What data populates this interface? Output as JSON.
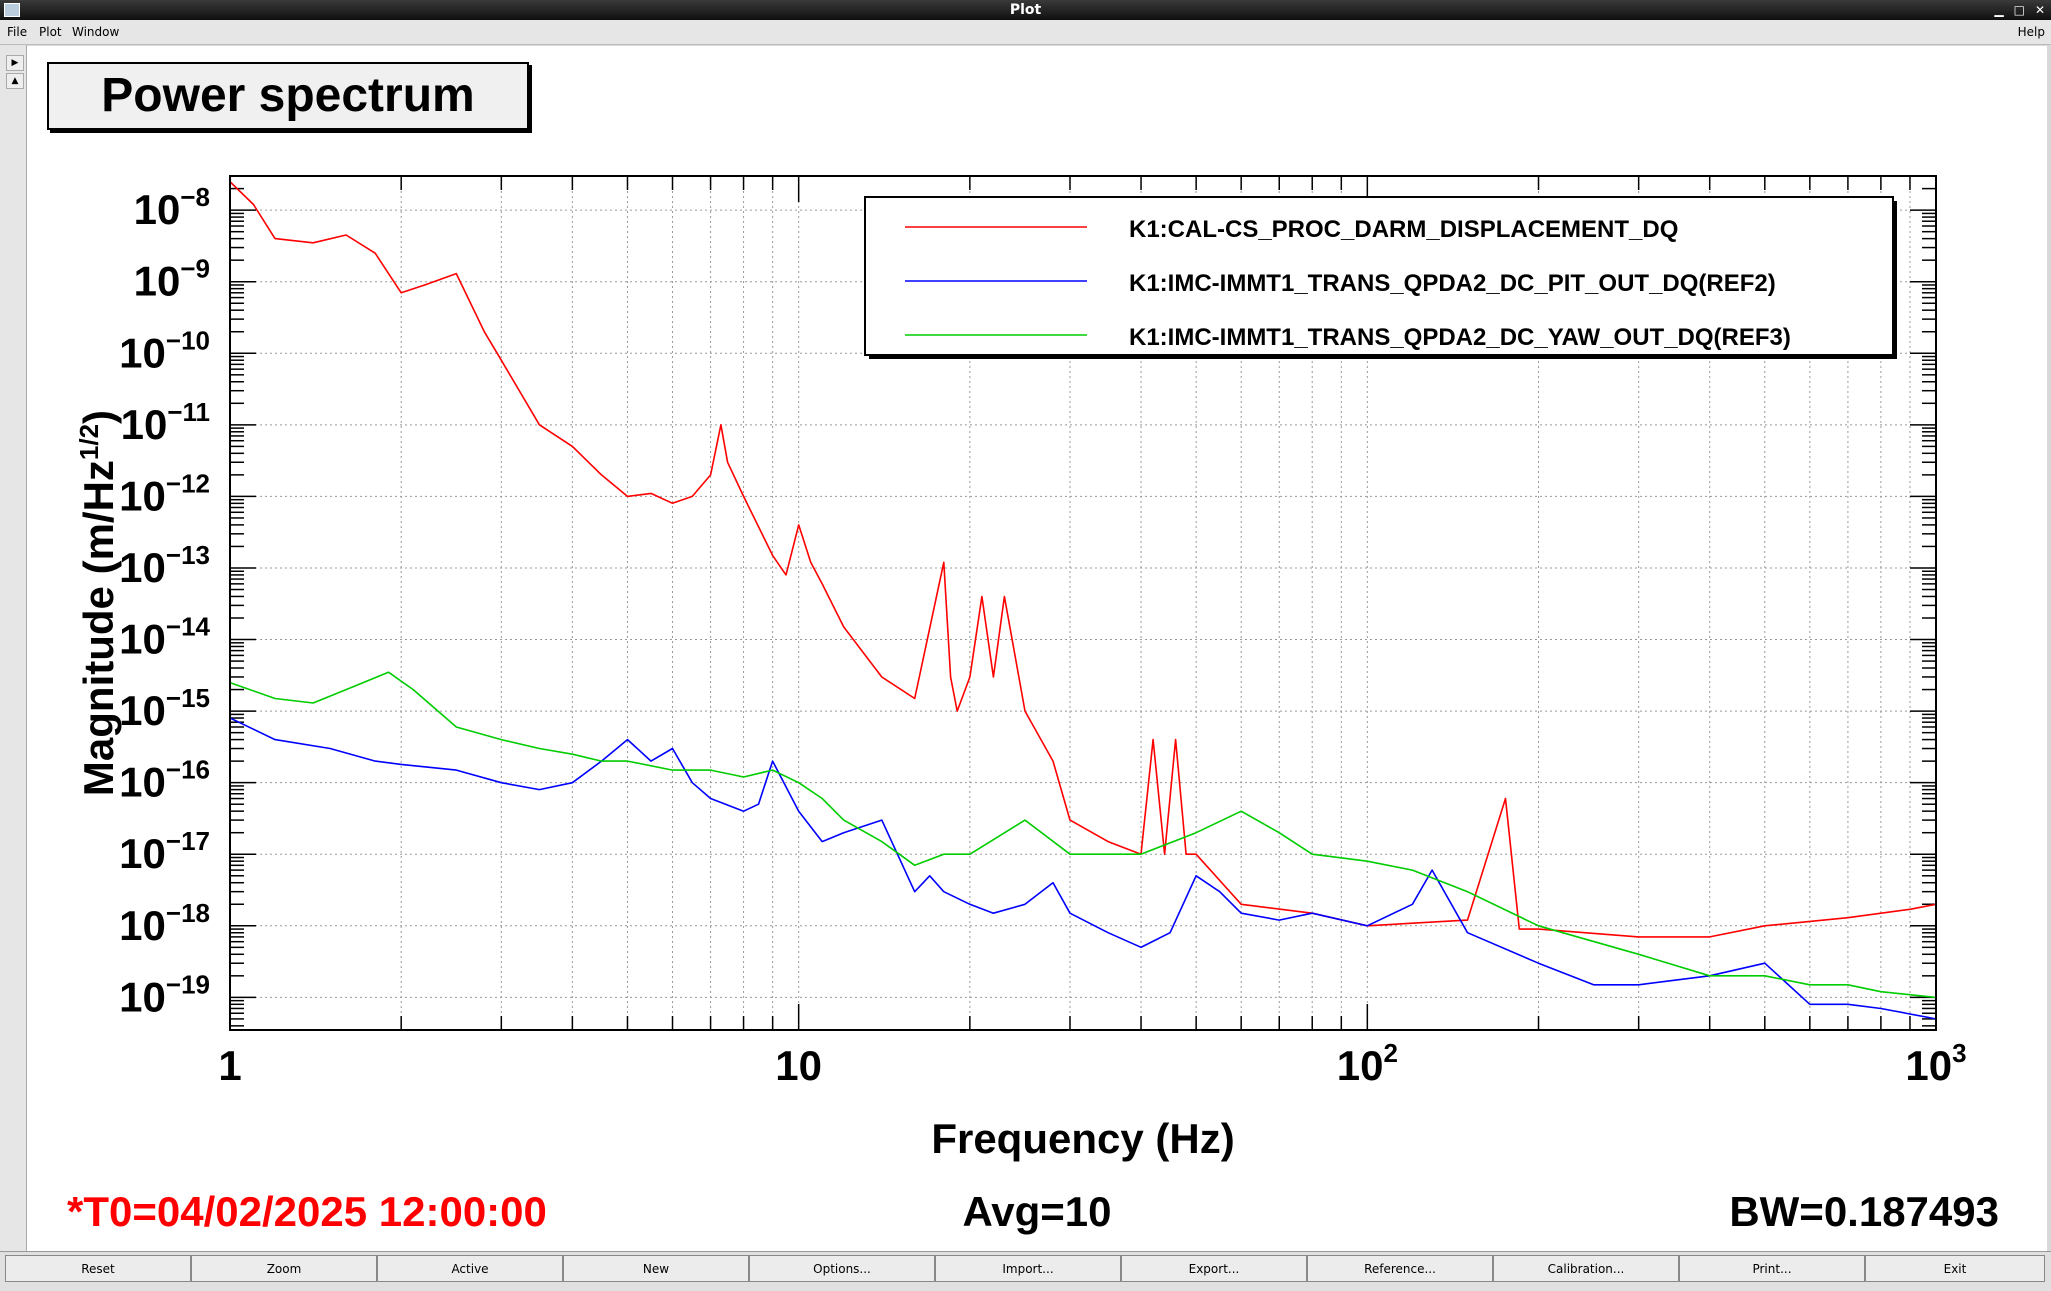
{
  "window": {
    "title": "Plot",
    "help_label": "Help"
  },
  "menu": {
    "items": [
      "File",
      "Plot",
      "Window"
    ]
  },
  "plot_title": "Power spectrum",
  "status": {
    "t0": "*T0=04/02/2025 12:00:00",
    "avg": "Avg=10",
    "bw": "BW=0.187493",
    "t0_color": "#ff0000"
  },
  "buttons": [
    "Reset",
    "Zoom",
    "Active",
    "New",
    "Options...",
    "Import...",
    "Export...",
    "Reference...",
    "Calibration...",
    "Print...",
    "Exit"
  ],
  "chart_data": {
    "type": "line",
    "xlabel": "Frequency (Hz)",
    "ylabel": "Magnitude (m/Hz^(1/2))",
    "xscale": "log",
    "yscale": "log",
    "xlim": [
      1,
      1000
    ],
    "ylim": [
      3.5e-20,
      3e-08
    ],
    "grid": true,
    "legend_placement": "top-right",
    "x_ticks": [
      {
        "value": 1,
        "mantissa": "1",
        "exp": ""
      },
      {
        "value": 10,
        "mantissa": "10",
        "exp": ""
      },
      {
        "value": 100,
        "mantissa": "10",
        "exp": "2"
      },
      {
        "value": 1000,
        "mantissa": "10",
        "exp": "3"
      }
    ],
    "y_ticks": [
      {
        "value": 1e-08,
        "mantissa": "10",
        "exp": "−8"
      },
      {
        "value": 1e-09,
        "mantissa": "10",
        "exp": "−9"
      },
      {
        "value": 1e-10,
        "mantissa": "10",
        "exp": "−10"
      },
      {
        "value": 1e-11,
        "mantissa": "10",
        "exp": "−11"
      },
      {
        "value": 1e-12,
        "mantissa": "10",
        "exp": "−12"
      },
      {
        "value": 1e-13,
        "mantissa": "10",
        "exp": "−13"
      },
      {
        "value": 1e-14,
        "mantissa": "10",
        "exp": "−14"
      },
      {
        "value": 1e-15,
        "mantissa": "10",
        "exp": "−15"
      },
      {
        "value": 1e-16,
        "mantissa": "10",
        "exp": "−16"
      },
      {
        "value": 1e-17,
        "mantissa": "10",
        "exp": "−17"
      },
      {
        "value": 1e-18,
        "mantissa": "10",
        "exp": "−18"
      },
      {
        "value": 1e-19,
        "mantissa": "10",
        "exp": "−19"
      }
    ],
    "series": [
      {
        "name": "K1:CAL-CS_PROC_DARM_DISPLACEMENT_DQ",
        "color": "#ff0000",
        "x": [
          1,
          1.1,
          1.2,
          1.4,
          1.6,
          1.8,
          2.0,
          2.2,
          2.5,
          2.8,
          3.0,
          3.5,
          4.0,
          4.5,
          5.0,
          5.5,
          6.0,
          6.5,
          7.0,
          7.3,
          7.5,
          8.0,
          9.0,
          9.5,
          10.0,
          10.5,
          11,
          12,
          14,
          16,
          18,
          18.5,
          19,
          20,
          21,
          22,
          23,
          25,
          28,
          30,
          35,
          40,
          42,
          44,
          46,
          48,
          50,
          60,
          80,
          100,
          150,
          175,
          185,
          200,
          300,
          400,
          500,
          700,
          900,
          1000
        ],
        "y": [
          2.5e-08,
          1.2e-08,
          4e-09,
          3.5e-09,
          4.5e-09,
          2.5e-09,
          7e-10,
          9e-10,
          1.3e-09,
          2e-10,
          8e-11,
          1e-11,
          5e-12,
          2e-12,
          1e-12,
          1.1e-12,
          8e-13,
          1e-12,
          2e-12,
          1e-11,
          3e-12,
          1e-12,
          1.5e-13,
          8e-14,
          4e-13,
          1.2e-13,
          6e-14,
          1.5e-14,
          3e-15,
          1.5e-15,
          1.2e-13,
          3e-15,
          1e-15,
          3e-15,
          4e-14,
          3e-15,
          4e-14,
          1e-15,
          2e-16,
          3e-17,
          1.5e-17,
          1e-17,
          4e-16,
          1e-17,
          4e-16,
          1e-17,
          1e-17,
          2e-18,
          1.5e-18,
          1e-18,
          1.2e-18,
          6e-17,
          9e-19,
          9e-19,
          7e-19,
          7e-19,
          1e-18,
          1.3e-18,
          1.7e-18,
          2e-18
        ]
      },
      {
        "name": "K1:IMC-IMMT1_TRANS_QPDA2_DC_PIT_OUT_DQ(REF2)",
        "color": "#0000ff",
        "x": [
          1,
          1.2,
          1.5,
          1.8,
          2.0,
          2.5,
          3.0,
          3.5,
          4.0,
          4.5,
          5.0,
          5.5,
          6.0,
          6.5,
          7.0,
          8.0,
          8.5,
          9.0,
          10,
          11,
          12,
          14,
          16,
          17,
          18,
          20,
          22,
          25,
          28,
          30,
          35,
          40,
          45,
          50,
          55,
          60,
          70,
          80,
          100,
          120,
          130,
          150,
          200,
          250,
          300,
          400,
          500,
          600,
          700,
          800,
          1000
        ],
        "y": [
          8e-16,
          4e-16,
          3e-16,
          2e-16,
          1.8e-16,
          1.5e-16,
          1e-16,
          8e-17,
          1e-16,
          2e-16,
          4e-16,
          2e-16,
          3e-16,
          1e-16,
          6e-17,
          4e-17,
          5e-17,
          2e-16,
          4e-17,
          1.5e-17,
          2e-17,
          3e-17,
          3e-18,
          5e-18,
          3e-18,
          2e-18,
          1.5e-18,
          2e-18,
          4e-18,
          1.5e-18,
          8e-19,
          5e-19,
          8e-19,
          5e-18,
          3e-18,
          1.5e-18,
          1.2e-18,
          1.5e-18,
          1e-18,
          2e-18,
          6e-18,
          8e-19,
          3e-19,
          1.5e-19,
          1.5e-19,
          2e-19,
          3e-19,
          8e-20,
          8e-20,
          7e-20,
          5e-20
        ]
      },
      {
        "name": "K1:IMC-IMMT1_TRANS_QPDA2_DC_YAW_OUT_DQ(REF3)",
        "color": "#00cc00",
        "x": [
          1,
          1.2,
          1.4,
          1.6,
          1.9,
          2.1,
          2.5,
          3.0,
          3.5,
          4.0,
          4.5,
          5.0,
          6.0,
          7.0,
          8.0,
          9.0,
          10,
          11,
          12,
          14,
          16,
          18,
          20,
          25,
          30,
          35,
          40,
          50,
          60,
          70,
          80,
          100,
          120,
          150,
          200,
          300,
          400,
          500,
          600,
          700,
          800,
          1000
        ],
        "y": [
          2.5e-15,
          1.5e-15,
          1.3e-15,
          2e-15,
          3.5e-15,
          2e-15,
          6e-16,
          4e-16,
          3e-16,
          2.5e-16,
          2e-16,
          2e-16,
          1.5e-16,
          1.5e-16,
          1.2e-16,
          1.5e-16,
          1e-16,
          6e-17,
          3e-17,
          1.5e-17,
          7e-18,
          1e-17,
          1e-17,
          3e-17,
          1e-17,
          1e-17,
          1e-17,
          2e-17,
          4e-17,
          2e-17,
          1e-17,
          8e-18,
          6e-18,
          3e-18,
          1e-18,
          4e-19,
          2e-19,
          2e-19,
          1.5e-19,
          1.5e-19,
          1.2e-19,
          1e-19
        ]
      }
    ]
  }
}
